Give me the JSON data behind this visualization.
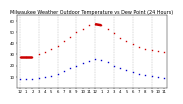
{
  "title": "Milwaukee Weather Outdoor Temperature vs Dew Point (24 Hours)",
  "title_fontsize": 3.5,
  "bg_color": "#ffffff",
  "temp_color": "#cc0000",
  "dew_color": "#0000cc",
  "grid_color": "#999999",
  "tick_fontsize": 2.8,
  "hours": [
    0,
    1,
    2,
    3,
    4,
    5,
    6,
    7,
    8,
    9,
    10,
    11,
    12,
    13,
    14,
    15,
    16,
    17,
    18,
    19,
    20,
    21,
    22,
    23
  ],
  "temp": [
    28,
    28,
    28,
    30,
    32,
    35,
    38,
    42,
    46,
    50,
    53,
    56,
    57,
    56,
    53,
    49,
    45,
    42,
    39,
    37,
    35,
    34,
    33,
    32
  ],
  "dew": [
    8,
    8,
    8,
    9,
    10,
    11,
    13,
    15,
    18,
    20,
    22,
    24,
    26,
    25,
    23,
    20,
    18,
    16,
    14,
    13,
    12,
    11,
    10,
    9
  ],
  "red_line_x": [
    0,
    1,
    2
  ],
  "red_line_y": [
    28,
    28,
    28
  ],
  "red_line2_x": [
    12,
    13
  ],
  "red_line2_y": [
    57,
    56
  ],
  "ylim": [
    0,
    65
  ],
  "xlim": [
    -0.5,
    23.5
  ],
  "yticks": [
    10,
    20,
    30,
    40,
    50,
    60
  ],
  "ytick_labels": [
    "10",
    "20",
    "30",
    "40",
    "50",
    "60"
  ],
  "xtick_positions": [
    0,
    1,
    2,
    3,
    4,
    5,
    6,
    7,
    8,
    9,
    10,
    11,
    12,
    13,
    14,
    15,
    16,
    17,
    18,
    19,
    20,
    21,
    22,
    23
  ],
  "xlabel_hours": [
    "12",
    "1",
    "2",
    "3",
    "4",
    "5",
    "6",
    "7",
    "8",
    "9",
    "10",
    "11",
    "12",
    "1",
    "2",
    "3",
    "4",
    "5",
    "6",
    "7",
    "8",
    "9",
    "10",
    "11"
  ],
  "vgrid_positions": [
    0,
    3,
    6,
    9,
    12,
    15,
    18,
    21
  ],
  "marker_size": 1.0,
  "dot_marker": "s"
}
